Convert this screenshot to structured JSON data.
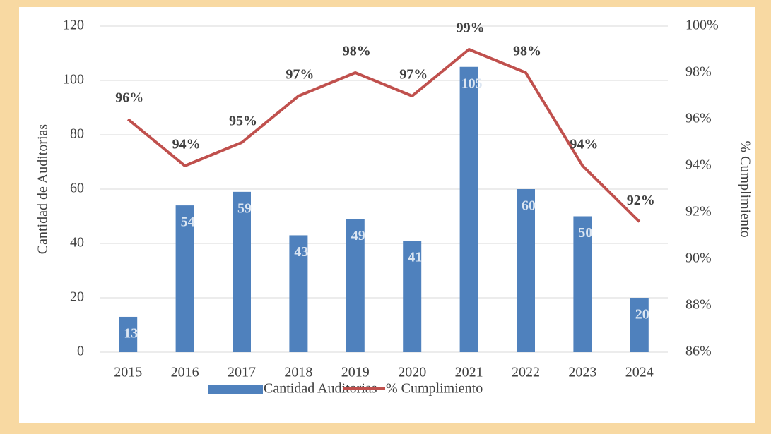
{
  "chart_data": {
    "type": "bar-line",
    "categories": [
      "2015",
      "2016",
      "2017",
      "2018",
      "2019",
      "2020",
      "2021",
      "2022",
      "2023",
      "2024"
    ],
    "series": [
      {
        "name": "Cantidad Auditorias",
        "type": "bar",
        "color": "#4f81bd",
        "values": [
          13,
          54,
          59,
          43,
          49,
          41,
          105,
          60,
          50,
          20
        ]
      },
      {
        "name": "% Cumplimiento",
        "type": "line",
        "axis": "y2",
        "color": "#c0504d",
        "values": [
          96,
          94,
          95,
          97,
          98,
          97,
          99,
          98,
          94,
          91.6
        ],
        "value_labels": [
          "96%",
          "94%",
          "95%",
          "97%",
          "98%",
          "97%",
          "99%",
          "98%",
          "94%",
          "92%"
        ]
      }
    ],
    "ylabel": "Cantidad de Auditorias",
    "y2label": "% Cumplimiento",
    "ylim": [
      0,
      120
    ],
    "yticks": [
      0,
      20,
      40,
      60,
      80,
      100,
      120
    ],
    "y2lim": [
      86,
      100
    ],
    "y2ticks": [
      {
        "value": 86,
        "label": "86%"
      },
      {
        "value": 88,
        "label": "88%"
      },
      {
        "value": 90,
        "label": "90%"
      },
      {
        "value": 92,
        "label": "92%"
      },
      {
        "value": 94,
        "label": "94%"
      },
      {
        "value": 96,
        "label": "96%"
      },
      {
        "value": 98,
        "label": "98%"
      },
      {
        "value": 100,
        "label": "100%"
      }
    ],
    "grid": true,
    "legend": "bottom"
  }
}
